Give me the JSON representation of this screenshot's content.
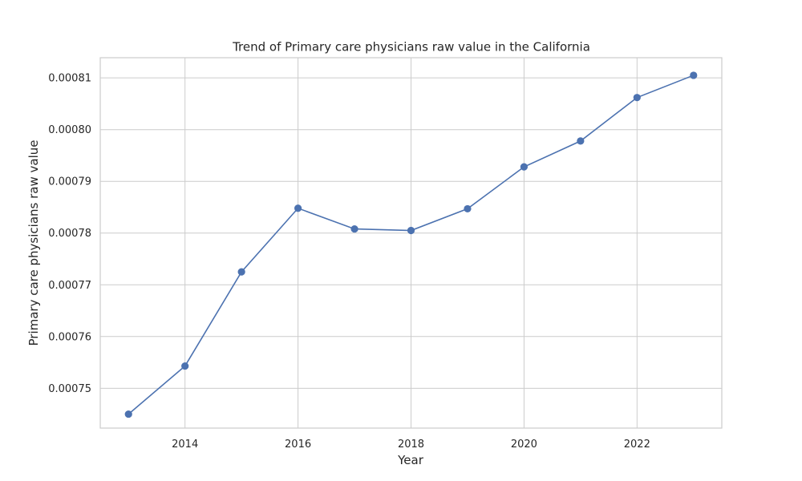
{
  "chart_data": {
    "type": "line",
    "title": "Trend of Primary care physicians raw value in the California",
    "xlabel": "Year",
    "ylabel": "Primary care physicians raw value",
    "x": [
      2013,
      2014,
      2015,
      2016,
      2017,
      2018,
      2019,
      2020,
      2021,
      2022,
      2023
    ],
    "series": [
      {
        "values": [
          0.000745,
          0.0007543,
          0.0007725,
          0.0007848,
          0.0007808,
          0.0007805,
          0.0007847,
          0.0007928,
          0.0007978,
          0.0008062,
          0.0008105
        ]
      }
    ],
    "xlim": [
      2012.5,
      2023.5
    ],
    "ylim": [
      0.0007423,
      0.0008139
    ],
    "x_ticks": [
      2014,
      2016,
      2018,
      2020,
      2022
    ],
    "x_tick_labels": [
      "2014",
      "2016",
      "2018",
      "2020",
      "2022"
    ],
    "y_ticks": [
      0.00075,
      0.00076,
      0.00077,
      0.00078,
      0.00079,
      0.0008,
      0.00081
    ],
    "y_tick_labels": [
      "0.00075",
      "0.00076",
      "0.00077",
      "0.00078",
      "0.00079",
      "0.00080",
      "0.00081"
    ],
    "grid": true,
    "colors": {
      "series": "#4c72b0",
      "grid": "#cccccc",
      "text": "#262626"
    }
  }
}
